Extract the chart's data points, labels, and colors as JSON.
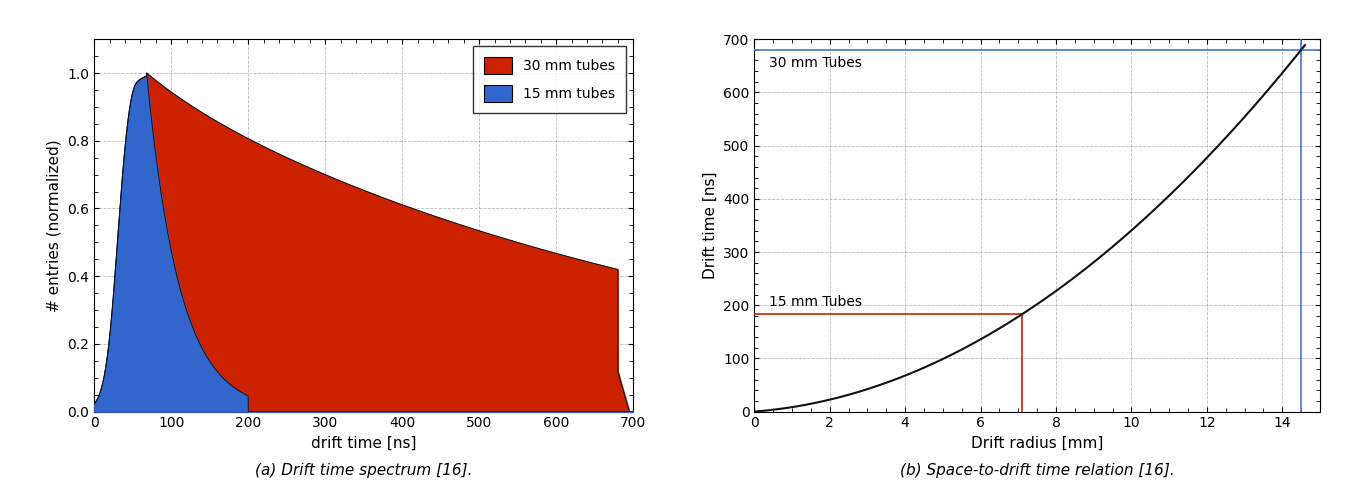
{
  "fig_width": 13.47,
  "fig_height": 4.9,
  "dpi": 100,
  "caption_a": "(a) Drift time spectrum [16].",
  "caption_b": "(b) Space-to-drift time relation [16].",
  "subplot_a": {
    "xlabel": "drift time [ns]",
    "ylabel": "# entries (normalized)",
    "xlim": [
      0,
      700
    ],
    "ylim": [
      0,
      1.1
    ],
    "yticks": [
      0,
      0.2,
      0.4,
      0.6,
      0.8,
      1
    ],
    "xticks": [
      0,
      100,
      200,
      300,
      400,
      500,
      600,
      700
    ],
    "color_30mm": "#CC2200",
    "color_15mm": "#3366CC",
    "color_line": "#111111",
    "legend_labels": [
      "30 mm tubes",
      "15 mm tubes"
    ],
    "grid_color": "#AAAAAA",
    "grid_linestyle": "--",
    "grid_alpha": 0.8
  },
  "subplot_b": {
    "xlabel": "Drift radius [mm]",
    "ylabel": "Drift time [ns]",
    "xlim": [
      0,
      15
    ],
    "ylim": [
      0,
      700
    ],
    "xticks": [
      0,
      2,
      4,
      6,
      8,
      10,
      12,
      14
    ],
    "yticks": [
      0,
      100,
      200,
      300,
      400,
      500,
      600,
      700
    ],
    "label_30mm": "30 mm Tubes",
    "label_15mm": "15 mm Tubes",
    "r_max_30mm": 14.5,
    "t_max_30mm": 680,
    "r_max_15mm": 7.1,
    "t_max_15mm": 183,
    "color_line": "#111111",
    "color_blue_line": "#4477CC",
    "color_red_line": "#CC2200",
    "grid_color": "#AAAAAA",
    "grid_linestyle": "--",
    "grid_alpha": 0.8
  }
}
